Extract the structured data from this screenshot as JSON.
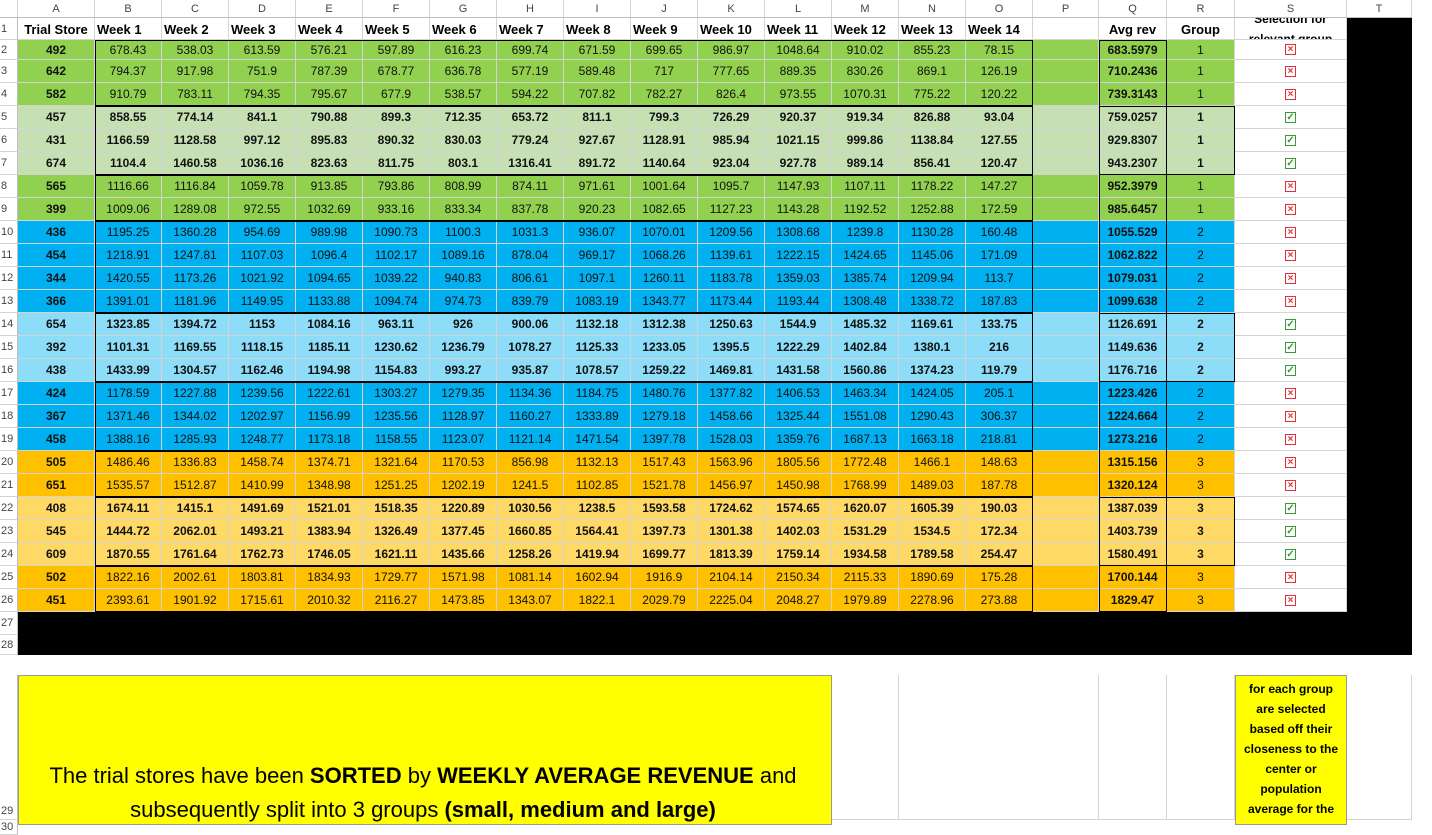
{
  "sheet": {
    "column_letters": [
      "A",
      "B",
      "C",
      "D",
      "E",
      "F",
      "G",
      "H",
      "I",
      "J",
      "K",
      "L",
      "M",
      "N",
      "O",
      "P",
      "Q",
      "R",
      "S",
      "T"
    ],
    "row_numbers": [
      "1",
      "2",
      "3",
      "4",
      "5",
      "6",
      "7",
      "8",
      "9",
      "10",
      "11",
      "12",
      "13",
      "14",
      "15",
      "16",
      "17",
      "18",
      "19",
      "20",
      "21",
      "22",
      "23",
      "24",
      "25",
      "26",
      "27",
      "28",
      "29",
      "30"
    ],
    "headers": {
      "trial_store": "Trial Store",
      "weeks": [
        "Week 1",
        "Week 2",
        "Week 3",
        "Week 4",
        "Week 5",
        "Week 6",
        "Week 7",
        "Week 8",
        "Week 9",
        "Week 10",
        "Week 11",
        "Week 12",
        "Week 13",
        "Week 14"
      ],
      "avg_rev": "Avg rev",
      "group": "Group",
      "selection_line1": "Selection for",
      "selection_line2": "relevant group"
    },
    "rows": [
      {
        "store": "492",
        "weeks": [
          "678.43",
          "538.03",
          "613.59",
          "576.21",
          "597.89",
          "616.23",
          "699.74",
          "671.59",
          "699.65",
          "986.97",
          "1048.64",
          "910.02",
          "855.23",
          "78.15"
        ],
        "avg": "683.5979",
        "group": "1",
        "selected": false
      },
      {
        "store": "642",
        "weeks": [
          "794.37",
          "917.98",
          "751.9",
          "787.39",
          "678.77",
          "636.78",
          "577.19",
          "589.48",
          "717",
          "777.65",
          "889.35",
          "830.26",
          "869.1",
          "126.19"
        ],
        "avg": "710.2436",
        "group": "1",
        "selected": false
      },
      {
        "store": "582",
        "weeks": [
          "910.79",
          "783.11",
          "794.35",
          "795.67",
          "677.9",
          "538.57",
          "594.22",
          "707.82",
          "782.27",
          "826.4",
          "973.55",
          "1070.31",
          "775.22",
          "120.22"
        ],
        "avg": "739.3143",
        "group": "1",
        "selected": false
      },
      {
        "store": "457",
        "weeks": [
          "858.55",
          "774.14",
          "841.1",
          "790.88",
          "899.3",
          "712.35",
          "653.72",
          "811.1",
          "799.3",
          "726.29",
          "920.37",
          "919.34",
          "826.88",
          "93.04"
        ],
        "avg": "759.0257",
        "group": "1",
        "selected": true
      },
      {
        "store": "431",
        "weeks": [
          "1166.59",
          "1128.58",
          "997.12",
          "895.83",
          "890.32",
          "830.03",
          "779.24",
          "927.67",
          "1128.91",
          "985.94",
          "1021.15",
          "999.86",
          "1138.84",
          "127.55"
        ],
        "avg": "929.8307",
        "group": "1",
        "selected": true
      },
      {
        "store": "674",
        "weeks": [
          "1104.4",
          "1460.58",
          "1036.16",
          "823.63",
          "811.75",
          "803.1",
          "1316.41",
          "891.72",
          "1140.64",
          "923.04",
          "927.78",
          "989.14",
          "856.41",
          "120.47"
        ],
        "avg": "943.2307",
        "group": "1",
        "selected": true
      },
      {
        "store": "565",
        "weeks": [
          "1116.66",
          "1116.84",
          "1059.78",
          "913.85",
          "793.86",
          "808.99",
          "874.11",
          "971.61",
          "1001.64",
          "1095.7",
          "1147.93",
          "1107.11",
          "1178.22",
          "147.27"
        ],
        "avg": "952.3979",
        "group": "1",
        "selected": false
      },
      {
        "store": "399",
        "weeks": [
          "1009.06",
          "1289.08",
          "972.55",
          "1032.69",
          "933.16",
          "833.34",
          "837.78",
          "920.23",
          "1082.65",
          "1127.23",
          "1143.28",
          "1192.52",
          "1252.88",
          "172.59"
        ],
        "avg": "985.6457",
        "group": "1",
        "selected": false
      },
      {
        "store": "436",
        "weeks": [
          "1195.25",
          "1360.28",
          "954.69",
          "989.98",
          "1090.73",
          "1100.3",
          "1031.3",
          "936.07",
          "1070.01",
          "1209.56",
          "1308.68",
          "1239.8",
          "1130.28",
          "160.48"
        ],
        "avg": "1055.529",
        "group": "2",
        "selected": false
      },
      {
        "store": "454",
        "weeks": [
          "1218.91",
          "1247.81",
          "1107.03",
          "1096.4",
          "1102.17",
          "1089.16",
          "878.04",
          "969.17",
          "1068.26",
          "1139.61",
          "1222.15",
          "1424.65",
          "1145.06",
          "171.09"
        ],
        "avg": "1062.822",
        "group": "2",
        "selected": false
      },
      {
        "store": "344",
        "weeks": [
          "1420.55",
          "1173.26",
          "1021.92",
          "1094.65",
          "1039.22",
          "940.83",
          "806.61",
          "1097.1",
          "1260.11",
          "1183.78",
          "1359.03",
          "1385.74",
          "1209.94",
          "113.7"
        ],
        "avg": "1079.031",
        "group": "2",
        "selected": false
      },
      {
        "store": "366",
        "weeks": [
          "1391.01",
          "1181.96",
          "1149.95",
          "1133.88",
          "1094.74",
          "974.73",
          "839.79",
          "1083.19",
          "1343.77",
          "1173.44",
          "1193.44",
          "1308.48",
          "1338.72",
          "187.83"
        ],
        "avg": "1099.638",
        "group": "2",
        "selected": false
      },
      {
        "store": "654",
        "weeks": [
          "1323.85",
          "1394.72",
          "1153",
          "1084.16",
          "963.11",
          "926",
          "900.06",
          "1132.18",
          "1312.38",
          "1250.63",
          "1544.9",
          "1485.32",
          "1169.61",
          "133.75"
        ],
        "avg": "1126.691",
        "group": "2",
        "selected": true
      },
      {
        "store": "392",
        "weeks": [
          "1101.31",
          "1169.55",
          "1118.15",
          "1185.11",
          "1230.62",
          "1236.79",
          "1078.27",
          "1125.33",
          "1233.05",
          "1395.5",
          "1222.29",
          "1402.84",
          "1380.1",
          "216"
        ],
        "avg": "1149.636",
        "group": "2",
        "selected": true
      },
      {
        "store": "438",
        "weeks": [
          "1433.99",
          "1304.57",
          "1162.46",
          "1194.98",
          "1154.83",
          "993.27",
          "935.87",
          "1078.57",
          "1259.22",
          "1469.81",
          "1431.58",
          "1560.86",
          "1374.23",
          "119.79"
        ],
        "avg": "1176.716",
        "group": "2",
        "selected": true
      },
      {
        "store": "424",
        "weeks": [
          "1178.59",
          "1227.88",
          "1239.56",
          "1222.61",
          "1303.27",
          "1279.35",
          "1134.36",
          "1184.75",
          "1480.76",
          "1377.82",
          "1406.53",
          "1463.34",
          "1424.05",
          "205.1"
        ],
        "avg": "1223.426",
        "group": "2",
        "selected": false
      },
      {
        "store": "367",
        "weeks": [
          "1371.46",
          "1344.02",
          "1202.97",
          "1156.99",
          "1235.56",
          "1128.97",
          "1160.27",
          "1333.89",
          "1279.18",
          "1458.66",
          "1325.44",
          "1551.08",
          "1290.43",
          "306.37"
        ],
        "avg": "1224.664",
        "group": "2",
        "selected": false
      },
      {
        "store": "458",
        "weeks": [
          "1388.16",
          "1285.93",
          "1248.77",
          "1173.18",
          "1158.55",
          "1123.07",
          "1121.14",
          "1471.54",
          "1397.78",
          "1528.03",
          "1359.76",
          "1687.13",
          "1663.18",
          "218.81"
        ],
        "avg": "1273.216",
        "group": "2",
        "selected": false
      },
      {
        "store": "505",
        "weeks": [
          "1486.46",
          "1336.83",
          "1458.74",
          "1374.71",
          "1321.64",
          "1170.53",
          "856.98",
          "1132.13",
          "1517.43",
          "1563.96",
          "1805.56",
          "1772.48",
          "1466.1",
          "148.63"
        ],
        "avg": "1315.156",
        "group": "3",
        "selected": false
      },
      {
        "store": "651",
        "weeks": [
          "1535.57",
          "1512.87",
          "1410.99",
          "1348.98",
          "1251.25",
          "1202.19",
          "1241.5",
          "1102.85",
          "1521.78",
          "1456.97",
          "1450.98",
          "1768.99",
          "1489.03",
          "187.78"
        ],
        "avg": "1320.124",
        "group": "3",
        "selected": false
      },
      {
        "store": "408",
        "weeks": [
          "1674.11",
          "1415.1",
          "1491.69",
          "1521.01",
          "1518.35",
          "1220.89",
          "1030.56",
          "1238.5",
          "1593.58",
          "1724.62",
          "1574.65",
          "1620.07",
          "1605.39",
          "190.03"
        ],
        "avg": "1387.039",
        "group": "3",
        "selected": true
      },
      {
        "store": "545",
        "weeks": [
          "1444.72",
          "2062.01",
          "1493.21",
          "1383.94",
          "1326.49",
          "1377.45",
          "1660.85",
          "1564.41",
          "1397.73",
          "1301.38",
          "1402.03",
          "1531.29",
          "1534.5",
          "172.34"
        ],
        "avg": "1403.739",
        "group": "3",
        "selected": true
      },
      {
        "store": "609",
        "weeks": [
          "1870.55",
          "1761.64",
          "1762.73",
          "1746.05",
          "1621.11",
          "1435.66",
          "1258.26",
          "1419.94",
          "1699.77",
          "1813.39",
          "1759.14",
          "1934.58",
          "1789.58",
          "254.47"
        ],
        "avg": "1580.491",
        "group": "3",
        "selected": true
      },
      {
        "store": "502",
        "weeks": [
          "1822.16",
          "2002.61",
          "1803.81",
          "1834.93",
          "1729.77",
          "1571.98",
          "1081.14",
          "1602.94",
          "1916.9",
          "2104.14",
          "2150.34",
          "2115.33",
          "1890.69",
          "175.28"
        ],
        "avg": "1700.144",
        "group": "3",
        "selected": false
      },
      {
        "store": "451",
        "weeks": [
          "2393.61",
          "1901.92",
          "1715.61",
          "2010.32",
          "2116.27",
          "1473.85",
          "1343.07",
          "1822.1",
          "2029.79",
          "2225.04",
          "2048.27",
          "1979.89",
          "2278.96",
          "273.88"
        ],
        "avg": "1829.47",
        "group": "3",
        "selected": false
      }
    ],
    "colors": {
      "group1": "#92d050",
      "group1_selected": "#c6e0b4",
      "group2": "#00b0f0",
      "group2_selected": "#8ddcf8",
      "group3": "#ffc000",
      "group3_selected": "#ffd966",
      "note_bg": "#ffff00",
      "black_fill": "#000000"
    },
    "icons": {
      "checked": "checkbox-checked-icon",
      "unchecked": "checkbox-unchecked-icon"
    }
  },
  "notes": {
    "main_parts": [
      {
        "text": "The trial stores have been ",
        "bold": false
      },
      {
        "text": "SORTED",
        "bold": true
      },
      {
        "text": " by ",
        "bold": false
      },
      {
        "text": "WEEKLY AVERAGE REVENUE",
        "bold": true
      },
      {
        "text": " and subsequently split into 3 groups ",
        "bold": false
      },
      {
        "text": "(small, medium and large)",
        "bold": true
      }
    ],
    "side_lines": [
      "for each group",
      "are selected",
      "based off their",
      "closeness to the",
      "center or",
      "population",
      "average for the"
    ]
  }
}
